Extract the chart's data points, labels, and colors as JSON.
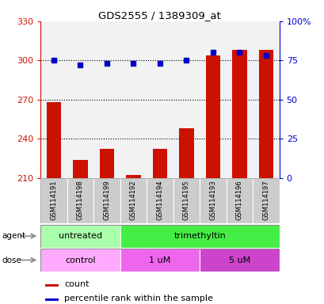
{
  "title": "GDS2555 / 1389309_at",
  "samples": [
    "GSM114191",
    "GSM114198",
    "GSM114199",
    "GSM114192",
    "GSM114194",
    "GSM114195",
    "GSM114193",
    "GSM114196",
    "GSM114197"
  ],
  "counts": [
    268,
    224,
    232,
    212,
    232,
    248,
    304,
    308,
    308
  ],
  "percentiles": [
    75,
    72,
    73,
    73,
    73,
    75,
    80,
    80,
    78
  ],
  "ymin": 210,
  "ymax": 330,
  "yticks": [
    210,
    240,
    270,
    300,
    330
  ],
  "y2min": 0,
  "y2max": 100,
  "y2ticks": [
    0,
    25,
    50,
    75,
    100
  ],
  "bar_color": "#cc1100",
  "dot_color": "#0000cc",
  "agent_groups": [
    {
      "label": "untreated",
      "start": 0,
      "end": 3,
      "color": "#aaffaa"
    },
    {
      "label": "trimethyltin",
      "start": 3,
      "end": 9,
      "color": "#44ee44"
    }
  ],
  "dose_groups": [
    {
      "label": "control",
      "start": 0,
      "end": 3,
      "color": "#ffaaff"
    },
    {
      "label": "1 uM",
      "start": 3,
      "end": 6,
      "color": "#ee66ee"
    },
    {
      "label": "5 uM",
      "start": 6,
      "end": 9,
      "color": "#cc44cc"
    }
  ],
  "legend_count_color": "#cc1100",
  "legend_dot_color": "#0000cc",
  "bg_color": "#ffffff",
  "plot_bg": "#ffffff",
  "tick_color_left": "#cc1100",
  "tick_color_right": "#0000cc",
  "sample_bg": "#cccccc",
  "grid_dotted_ticks": [
    240,
    270,
    300
  ]
}
